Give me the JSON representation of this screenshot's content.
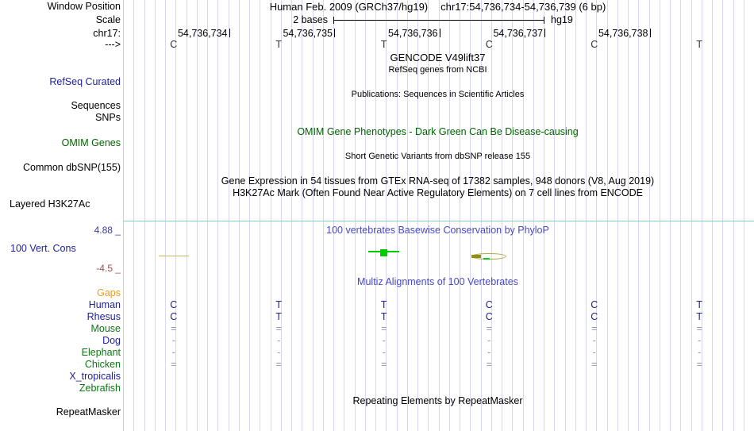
{
  "header": {
    "window_position_label": "Window Position",
    "assembly": "Human Feb. 2009 (GRCh37/hg19)",
    "position": "chr17:54,736,734-54,736,739 (6 bp)",
    "scale_label": "Scale",
    "scale_value": "2 bases",
    "scale_assembly": "hg19",
    "chrom_label": "chr17:",
    "strand_arrow": "--->"
  },
  "ruler": {
    "coordinate_labels": [
      "54,736,734",
      "54,736,735",
      "54,736,736",
      "54,736,737",
      "54,736,738"
    ],
    "sequence": [
      "C",
      "T",
      "T",
      "C",
      "C",
      "T"
    ]
  },
  "tracks": {
    "gencode": {
      "title": "GENCODE V49lift37",
      "subtitle": "RefSeq genes from NCBI",
      "side_label": "RefSeq Curated"
    },
    "publications": {
      "title": "Publications: Sequences in Scientific Articles",
      "side_label_1": "Sequences",
      "side_label_2": "SNPs"
    },
    "omim": {
      "title": "OMIM Gene Phenotypes - Dark Green Can Be Disease-causing",
      "side_label": "OMIM Genes"
    },
    "dbsnp": {
      "title": "Short Genetic Variants from dbSNP release 155",
      "side_label": "Common dbSNP(155)"
    },
    "gtex": {
      "title": "Gene Expression in 54 tissues from GTEx RNA-seq of 17382 samples, 948 donors (V8, Aug 2019)"
    },
    "h3k27ac": {
      "title": "H3K27Ac Mark (Often Found Near Active Regulatory Elements) on 7 cell lines from ENCODE",
      "side_label": "Layered H3K27Ac"
    },
    "conservation": {
      "title": "100 vertebrates Basewise Conservation by PhyloP",
      "side_label": "100 Vert. Cons",
      "axis_max": "4.88 _",
      "axis_min": "-4.5 _",
      "marks": [
        {
          "column": 0,
          "base": "C",
          "shape": "flat-dash",
          "color": "#c3ba5e"
        },
        {
          "column": 2,
          "base": "T",
          "shape": "positive-bar",
          "color": "#00cc00"
        },
        {
          "column": 3,
          "base": "C",
          "shape": "lens",
          "color": "#b3aa3f"
        }
      ]
    },
    "multiz": {
      "title": "Multiz Alignments of 100 Vertebrates",
      "gaps_label": "Gaps",
      "species": [
        {
          "name": "Human",
          "color": "navy",
          "cells": [
            "C",
            "T",
            "T",
            "C",
            "C",
            "T"
          ]
        },
        {
          "name": "Rhesus",
          "color": "navy",
          "cells": [
            "C",
            "T",
            "T",
            "C",
            "C",
            "T"
          ]
        },
        {
          "name": "Mouse",
          "color": "green",
          "cells": [
            "=",
            "=",
            "=",
            "=",
            "=",
            "="
          ]
        },
        {
          "name": "Dog",
          "color": "navy",
          "cells": [
            "-",
            "-",
            "-",
            "-",
            "-",
            "-"
          ]
        },
        {
          "name": "Elephant",
          "color": "green",
          "cells": [
            "-",
            "-",
            "-",
            "-",
            "-",
            "-"
          ]
        },
        {
          "name": "Chicken",
          "color": "green",
          "cells": [
            "=",
            "=",
            "=",
            "=",
            "=",
            "="
          ]
        },
        {
          "name": "X_tropicalis",
          "color": "navy",
          "cells": [
            "",
            "",
            "",
            "",
            "",
            ""
          ]
        },
        {
          "name": "Zebrafish",
          "color": "green",
          "cells": [
            "",
            "",
            "",
            "",
            "",
            ""
          ]
        }
      ]
    },
    "repeatmasker": {
      "title": "Repeating Elements by RepeatMasker",
      "side_label": "RepeatMasker"
    }
  },
  "colors": {
    "grid_line": "#d7d7ef",
    "plot_left_border": "#f7baba",
    "track_separator_teal": "#7fd4ca",
    "gutter_navy": "#21219c",
    "species_green": "#0c7812",
    "omim_green": "#006400",
    "title_blue": "#4848c8",
    "gaps_orange": "#ef9b23",
    "align_symbol_slate": "#9393bb",
    "cons_positive_green": "#00cc00",
    "cons_neutral_olive": "#b3aa3f",
    "axis_max_blue": "#3a3a9c",
    "axis_min_brown": "#9c5050"
  }
}
